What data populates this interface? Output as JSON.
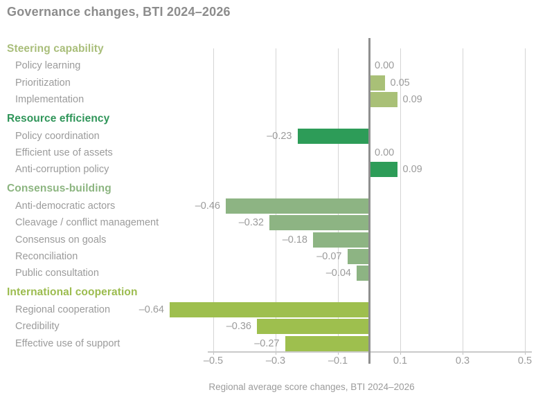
{
  "title": "Governance changes, BTI 2024–2026",
  "colors": {
    "title_gray": "#8c8c8c",
    "label_gray": "#9b9b9b",
    "gridline": "#d4d4d4",
    "zero_line": "#8f8f8f",
    "axis": "#c9c9c9"
  },
  "chart_data": {
    "type": "bar",
    "orientation": "horizontal",
    "title": "Governance changes, BTI 2024–2026",
    "xlabel": "Regional average score changes, BTI 2024–2026",
    "xlim": [
      -0.5,
      0.5
    ],
    "grid": true,
    "zero_line": true,
    "x_ticks": [
      {
        "value": -0.5,
        "label": "–0.5"
      },
      {
        "value": -0.3,
        "label": "–0.3"
      },
      {
        "value": -0.1,
        "label": "–0.1"
      },
      {
        "value": 0.1,
        "label": "0.1"
      },
      {
        "value": 0.3,
        "label": "0.3"
      },
      {
        "value": 0.5,
        "label": "0.5"
      }
    ],
    "sections": [
      {
        "name": "Steering capability",
        "header_color": "#a9be7a",
        "bar_color": "#a9c077",
        "items": [
          {
            "label": "Policy learning",
            "value": 0.0,
            "value_label": "0.00"
          },
          {
            "label": "Prioritization",
            "value": 0.05,
            "value_label": "0.05"
          },
          {
            "label": "Implementation",
            "value": 0.09,
            "value_label": "0.09"
          }
        ]
      },
      {
        "name": "Resource efficiency",
        "header_color": "#2f9559",
        "bar_color": "#2d9c58",
        "items": [
          {
            "label": "Policy coordination",
            "value": -0.23,
            "value_label": "–0.23"
          },
          {
            "label": "Efficient use of assets",
            "value": 0.0,
            "value_label": "0.00"
          },
          {
            "label": "Anti-corruption policy",
            "value": 0.09,
            "value_label": "0.09"
          }
        ]
      },
      {
        "name": "Consensus-building",
        "header_color": "#8cb580",
        "bar_color": "#8db483",
        "items": [
          {
            "label": "Anti-democratic actors",
            "value": -0.46,
            "value_label": "–0.46"
          },
          {
            "label": "Cleavage / conflict management",
            "value": -0.32,
            "value_label": "–0.32"
          },
          {
            "label": "Consensus on goals",
            "value": -0.18,
            "value_label": "–0.18"
          },
          {
            "label": "Reconciliation",
            "value": -0.07,
            "value_label": "–0.07"
          },
          {
            "label": "Public consultation",
            "value": -0.04,
            "value_label": "–0.04"
          }
        ]
      },
      {
        "name": "International cooperation",
        "header_color": "#9cbc4f",
        "bar_color": "#9ebf4e",
        "items": [
          {
            "label": "Regional cooperation",
            "value": -0.64,
            "value_label": "–0.64"
          },
          {
            "label": "Credibility",
            "value": -0.36,
            "value_label": "–0.36"
          },
          {
            "label": "Effective use of support",
            "value": -0.27,
            "value_label": "–0.27"
          }
        ]
      }
    ]
  }
}
